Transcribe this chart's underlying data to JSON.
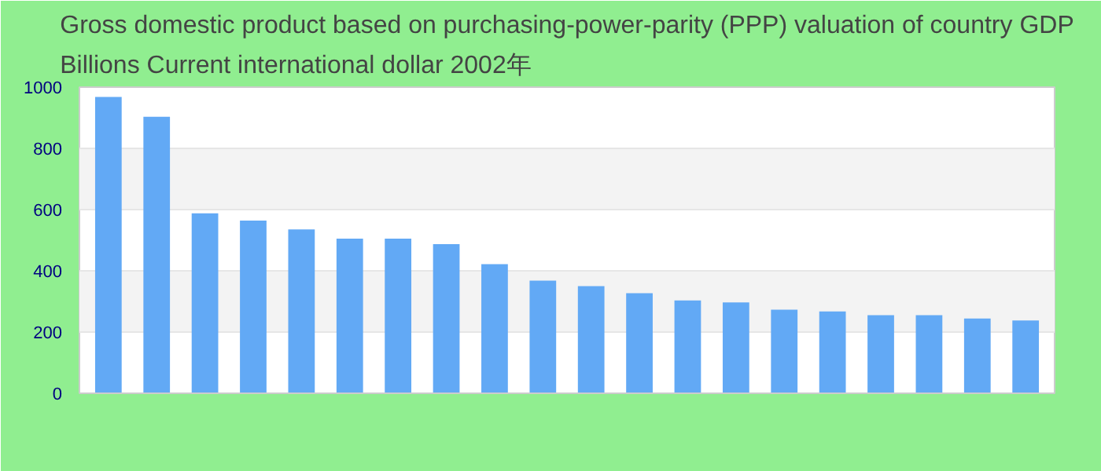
{
  "chart_data": {
    "type": "bar",
    "title": "Gross domestic product based on purchasing-power-parity (PPP) valuation of country GDP Billions Current international dollar 2002年",
    "categories": [
      null,
      null,
      null,
      null,
      null,
      null,
      null,
      null,
      null,
      null,
      null,
      null,
      null,
      null,
      null,
      null,
      null,
      null,
      null,
      null
    ],
    "values": [
      968,
      903,
      588,
      564,
      535,
      505,
      505,
      487,
      422,
      368,
      350,
      327,
      303,
      297,
      273,
      267,
      255,
      255,
      244,
      238
    ],
    "color": "#62a9f5",
    "ylim": [
      0,
      1000
    ],
    "yticks": [
      0,
      200,
      400,
      600,
      800,
      1000
    ],
    "grid": "y"
  }
}
